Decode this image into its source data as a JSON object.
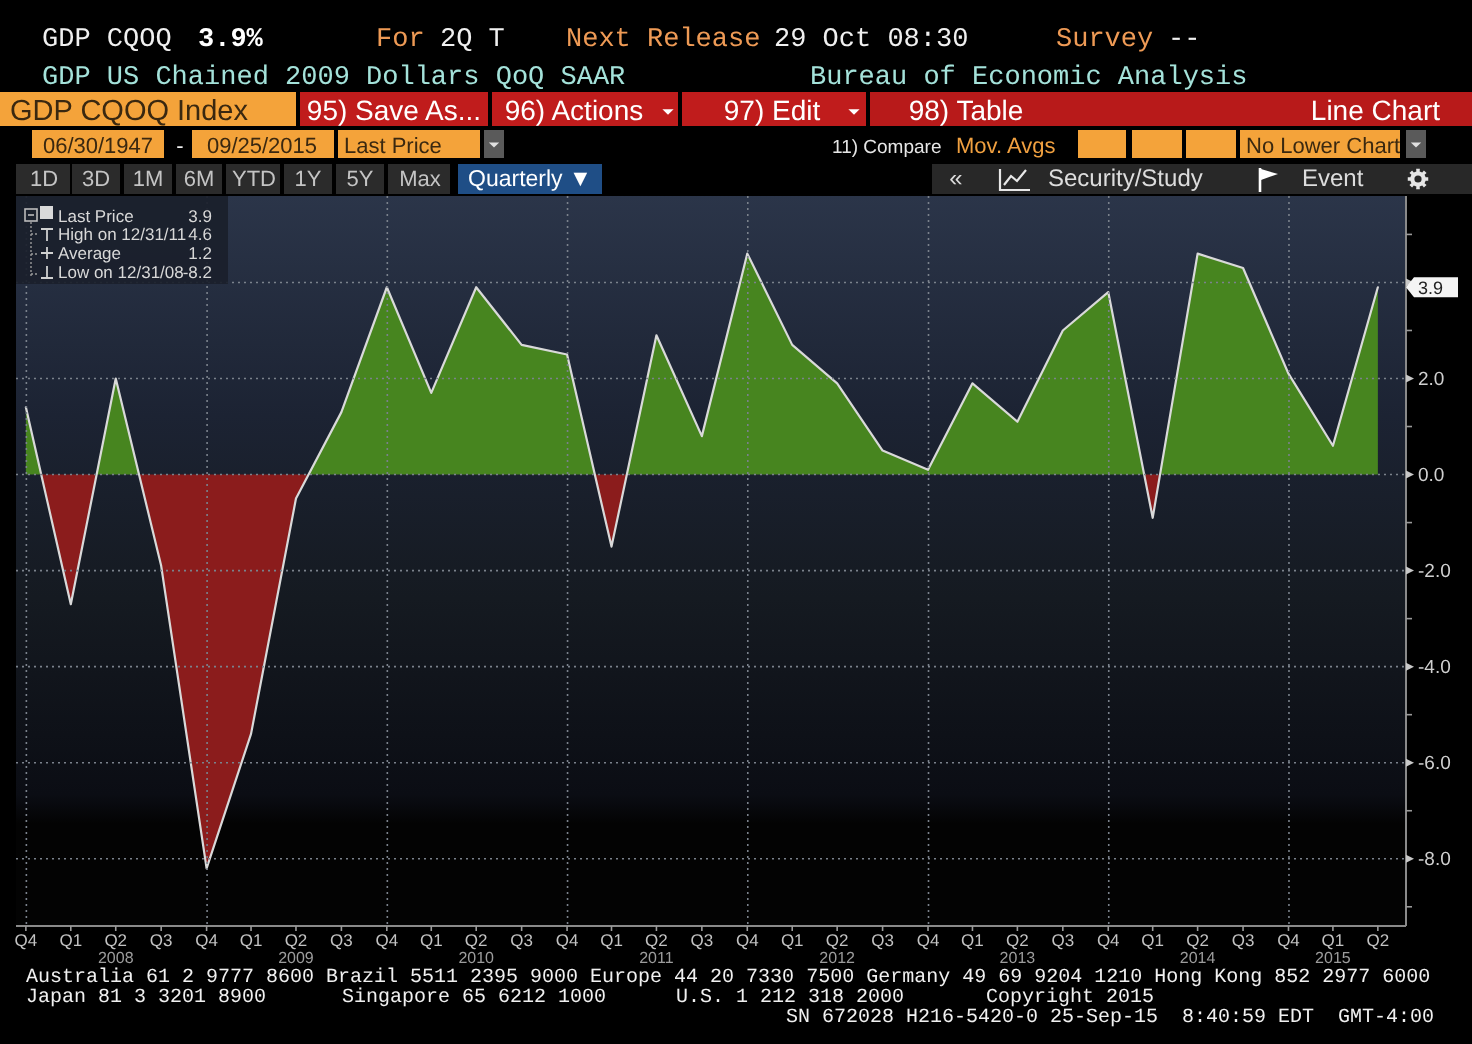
{
  "chart_data": {
    "type": "area",
    "title": "GDP US Chained 2009 Dollars QoQ SAAR",
    "subtitle": "Bureau of Economic Analysis",
    "x": [
      "2007-12-31",
      "2008-03-31",
      "2008-06-30",
      "2008-09-30",
      "2008-12-31",
      "2009-03-31",
      "2009-06-30",
      "2009-09-30",
      "2009-12-31",
      "2010-03-31",
      "2010-06-30",
      "2010-09-30",
      "2010-12-31",
      "2011-03-31",
      "2011-06-30",
      "2011-09-30",
      "2011-12-31",
      "2012-03-31",
      "2012-06-30",
      "2012-09-30",
      "2012-12-31",
      "2013-03-31",
      "2013-06-30",
      "2013-09-30",
      "2013-12-31",
      "2014-03-31",
      "2014-06-30",
      "2014-09-30",
      "2014-12-31",
      "2015-03-31",
      "2015-06-30"
    ],
    "series": [
      {
        "name": "Last Price",
        "color": "#d9d9d9",
        "colors": [
          "#47851f",
          "#8b1c1c",
          "#47851f",
          "#8b1c1c",
          "#8b1c1c",
          "#8b1c1c",
          "#8b1c1c",
          "#47851f",
          "#47851f",
          "#47851f",
          "#47851f",
          "#47851f",
          "#47851f",
          "#8b1c1c",
          "#47851f",
          "#47851f",
          "#47851f",
          "#47851f",
          "#47851f",
          "#47851f",
          "#47851f",
          "#47851f",
          "#47851f",
          "#47851f",
          "#47851f",
          "#8b1c1c",
          "#47851f",
          "#47851f",
          "#47851f",
          "#47851f",
          "#47851f"
        ],
        "values": [
          1.4,
          -2.7,
          2.0,
          -1.9,
          -8.2,
          -5.4,
          -0.5,
          1.3,
          3.9,
          1.7,
          3.9,
          2.7,
          2.5,
          -1.5,
          2.9,
          0.8,
          4.6,
          2.7,
          1.9,
          0.5,
          0.1,
          1.9,
          1.1,
          3.0,
          3.8,
          -0.9,
          4.6,
          4.3,
          2.1,
          0.6,
          3.9
        ]
      }
    ],
    "xlim": [
      "2007-12-11",
      "2015-08-26"
    ],
    "xticks": [
      {
        "value": "2007-12-31",
        "label": "Q4"
      },
      {
        "value": "2008-03-31",
        "label": "Q1"
      },
      {
        "value": "2008-06-30",
        "label": "Q2\n2008"
      },
      {
        "value": "2008-09-30",
        "label": "Q3"
      },
      {
        "value": "2008-12-31",
        "label": "Q4"
      },
      {
        "value": "2009-03-31",
        "label": "Q1"
      },
      {
        "value": "2009-06-30",
        "label": "Q2\n2009"
      },
      {
        "value": "2009-09-30",
        "label": "Q3"
      },
      {
        "value": "2009-12-31",
        "label": "Q4"
      },
      {
        "value": "2010-03-31",
        "label": "Q1"
      },
      {
        "value": "2010-06-30",
        "label": "Q2\n2010"
      },
      {
        "value": "2010-09-30",
        "label": "Q3"
      },
      {
        "value": "2010-12-31",
        "label": "Q4"
      },
      {
        "value": "2011-03-31",
        "label": "Q1"
      },
      {
        "value": "2011-06-30",
        "label": "Q2\n2011"
      },
      {
        "value": "2011-09-30",
        "label": "Q3"
      },
      {
        "value": "2011-12-31",
        "label": "Q4"
      },
      {
        "value": "2012-03-31",
        "label": "Q1"
      },
      {
        "value": "2012-06-30",
        "label": "Q2\n2012"
      },
      {
        "value": "2012-09-30",
        "label": "Q3"
      },
      {
        "value": "2012-12-31",
        "label": "Q4"
      },
      {
        "value": "2013-03-31",
        "label": "Q1"
      },
      {
        "value": "2013-06-30",
        "label": "Q2\n2013"
      },
      {
        "value": "2013-09-30",
        "label": "Q3"
      },
      {
        "value": "2013-12-31",
        "label": "Q4"
      },
      {
        "value": "2014-03-31",
        "label": "Q1"
      },
      {
        "value": "2014-06-30",
        "label": "Q2\n2014"
      },
      {
        "value": "2014-09-30",
        "label": "Q3"
      },
      {
        "value": "2014-12-31",
        "label": "Q4"
      },
      {
        "value": "2015-03-31",
        "label": "Q1\n2015"
      },
      {
        "value": "2015-06-30",
        "label": "Q2"
      }
    ],
    "ylim": [
      -9.4,
      5.8
    ],
    "yticks": [
      {
        "value": -8,
        "label": "-8.0"
      },
      {
        "value": -6,
        "label": "-6.0"
      },
      {
        "value": -4,
        "label": "-4.0"
      },
      {
        "value": -2,
        "label": "-2.0"
      },
      {
        "value": 0,
        "label": "0.0"
      },
      {
        "value": 2,
        "label": "2.0"
      },
      {
        "value": 4,
        "label": null
      }
    ],
    "grid": true,
    "legend": "top left",
    "annotations": [
      "GDP CQOQ",
      "3.9%",
      "For",
      "2Q T",
      "Next Release",
      "29 Oct 08:30",
      "Survey",
      "--",
      "GDP CQOQ Index",
      "95) Save As...",
      "96) Actions",
      "97) Edit",
      "98) Table",
      "Line Chart",
      "06/30/1947",
      "-",
      "09/25/2015",
      "Last Price",
      "11) Compare",
      "Mov. Avgs",
      "No Lower Chart",
      "1D",
      "3D",
      "1M",
      "6M",
      "YTD",
      "1Y",
      "5Y",
      "Max",
      "Quarterly ▼",
      "«",
      "Security/Study",
      "Event",
      "3.9",
      "High on 12/31/11",
      "4.6",
      "Average",
      "1.2",
      "Low on 12/31/08",
      "-8.2",
      {
        "text": "3.9",
        "x": "2015-06-30",
        "y": 3.9
      },
      "Australia 61 2 9777 8600 Brazil 5511 2395 9000 Europe 44 20 7330 7500 Germany 49 69 9204 1210 Hong Kong 852 2977 6000",
      "Japan 81 3 3201 8900",
      "Singapore 65 6212 1000",
      "U.S. 1 212 318 2000",
      "Copyright 2015",
      "SN 672028 H216-5420-0 25-Sep-15  8:40:59 EDT  GMT-4:00"
    ]
  }
}
